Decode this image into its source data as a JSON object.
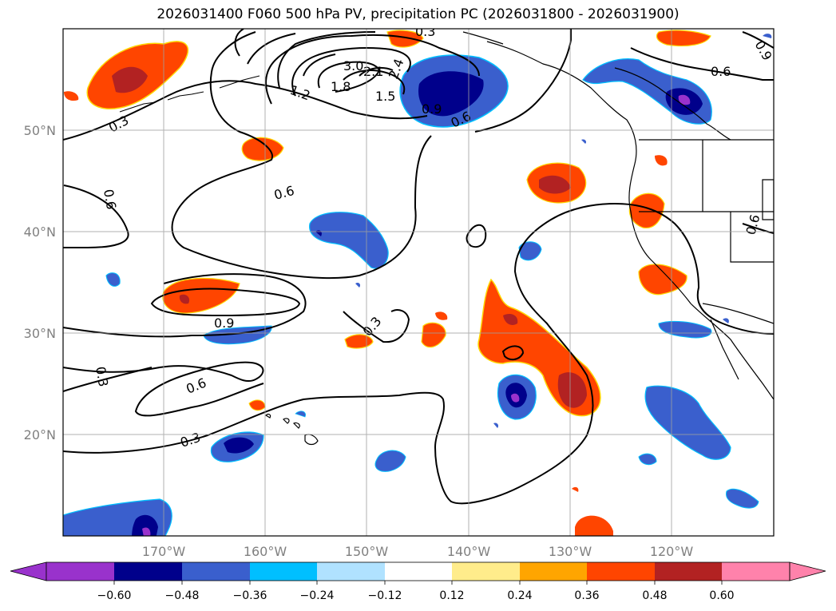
{
  "title": "2026031400 F060 500 hPa PV, precipitation PC (2026031800 - 2026031900)",
  "map": {
    "lon_labels": [
      "170°W",
      "160°W",
      "150°W",
      "140°W",
      "130°W",
      "120°W"
    ],
    "lat_labels": [
      "50°N",
      "40°N",
      "30°N",
      "20°N"
    ],
    "contour_labels": [
      "0.3",
      "0.6",
      "0.9",
      "1.2",
      "1.5",
      "1.8",
      "2.1",
      "2.4",
      "3.0",
      "0.6",
      "0.9",
      "0.3",
      "0.6",
      "0.3",
      "0.3",
      "0.6",
      "0.6",
      "0.3",
      "0.6",
      "0.9"
    ]
  },
  "colorbar": {
    "tick_labels": [
      "−0.60",
      "−0.48",
      "−0.36",
      "−0.24",
      "−0.12",
      "0.12",
      "0.24",
      "0.36",
      "0.48",
      "0.60"
    ],
    "colors": [
      "#9932cc",
      "#00008b",
      "#3a5fcd",
      "#00bfff",
      "#b0e2ff",
      "#ffffff",
      "#ffec8b",
      "#ffa500",
      "#ff4500",
      "#b22222",
      "#ff82ab"
    ]
  }
}
